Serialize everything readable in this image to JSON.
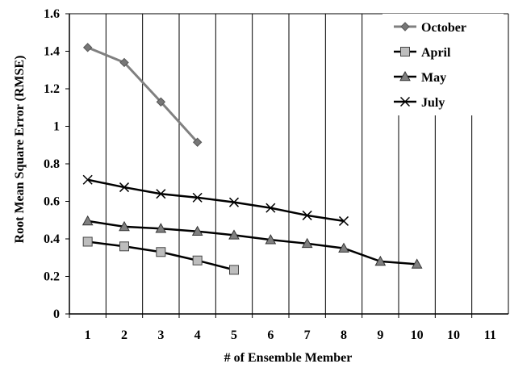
{
  "chart_data": {
    "type": "line",
    "xlabel": "# of Ensemble Member",
    "ylabel": "Root Mean Square Error (RMSE)",
    "x_categories": [
      "1",
      "2",
      "3",
      "4",
      "5",
      "6",
      "7",
      "8",
      "9",
      "10",
      "10",
      "11"
    ],
    "yticks": [
      "0",
      "0.2",
      "0.4",
      "0.6",
      "0.8",
      "1",
      "1.2",
      "1.4",
      "1.6"
    ],
    "ylim": [
      0,
      1.6
    ],
    "grid": true,
    "legend_position": "top-right",
    "series": [
      {
        "name": "October",
        "marker": "diamond",
        "color": "#808080",
        "values": [
          1.42,
          1.34,
          1.13,
          0.915
        ]
      },
      {
        "name": "April",
        "marker": "square",
        "color": "#000000",
        "values": [
          0.385,
          0.36,
          0.33,
          0.285,
          0.235
        ]
      },
      {
        "name": "May",
        "marker": "triangle",
        "color": "#000000",
        "values": [
          0.495,
          0.465,
          0.455,
          0.44,
          0.42,
          0.395,
          0.375,
          0.35,
          0.28,
          0.265
        ]
      },
      {
        "name": "July",
        "marker": "x",
        "color": "#000000",
        "values": [
          0.715,
          0.675,
          0.64,
          0.62,
          0.595,
          0.565,
          0.525,
          0.495
        ]
      }
    ]
  }
}
